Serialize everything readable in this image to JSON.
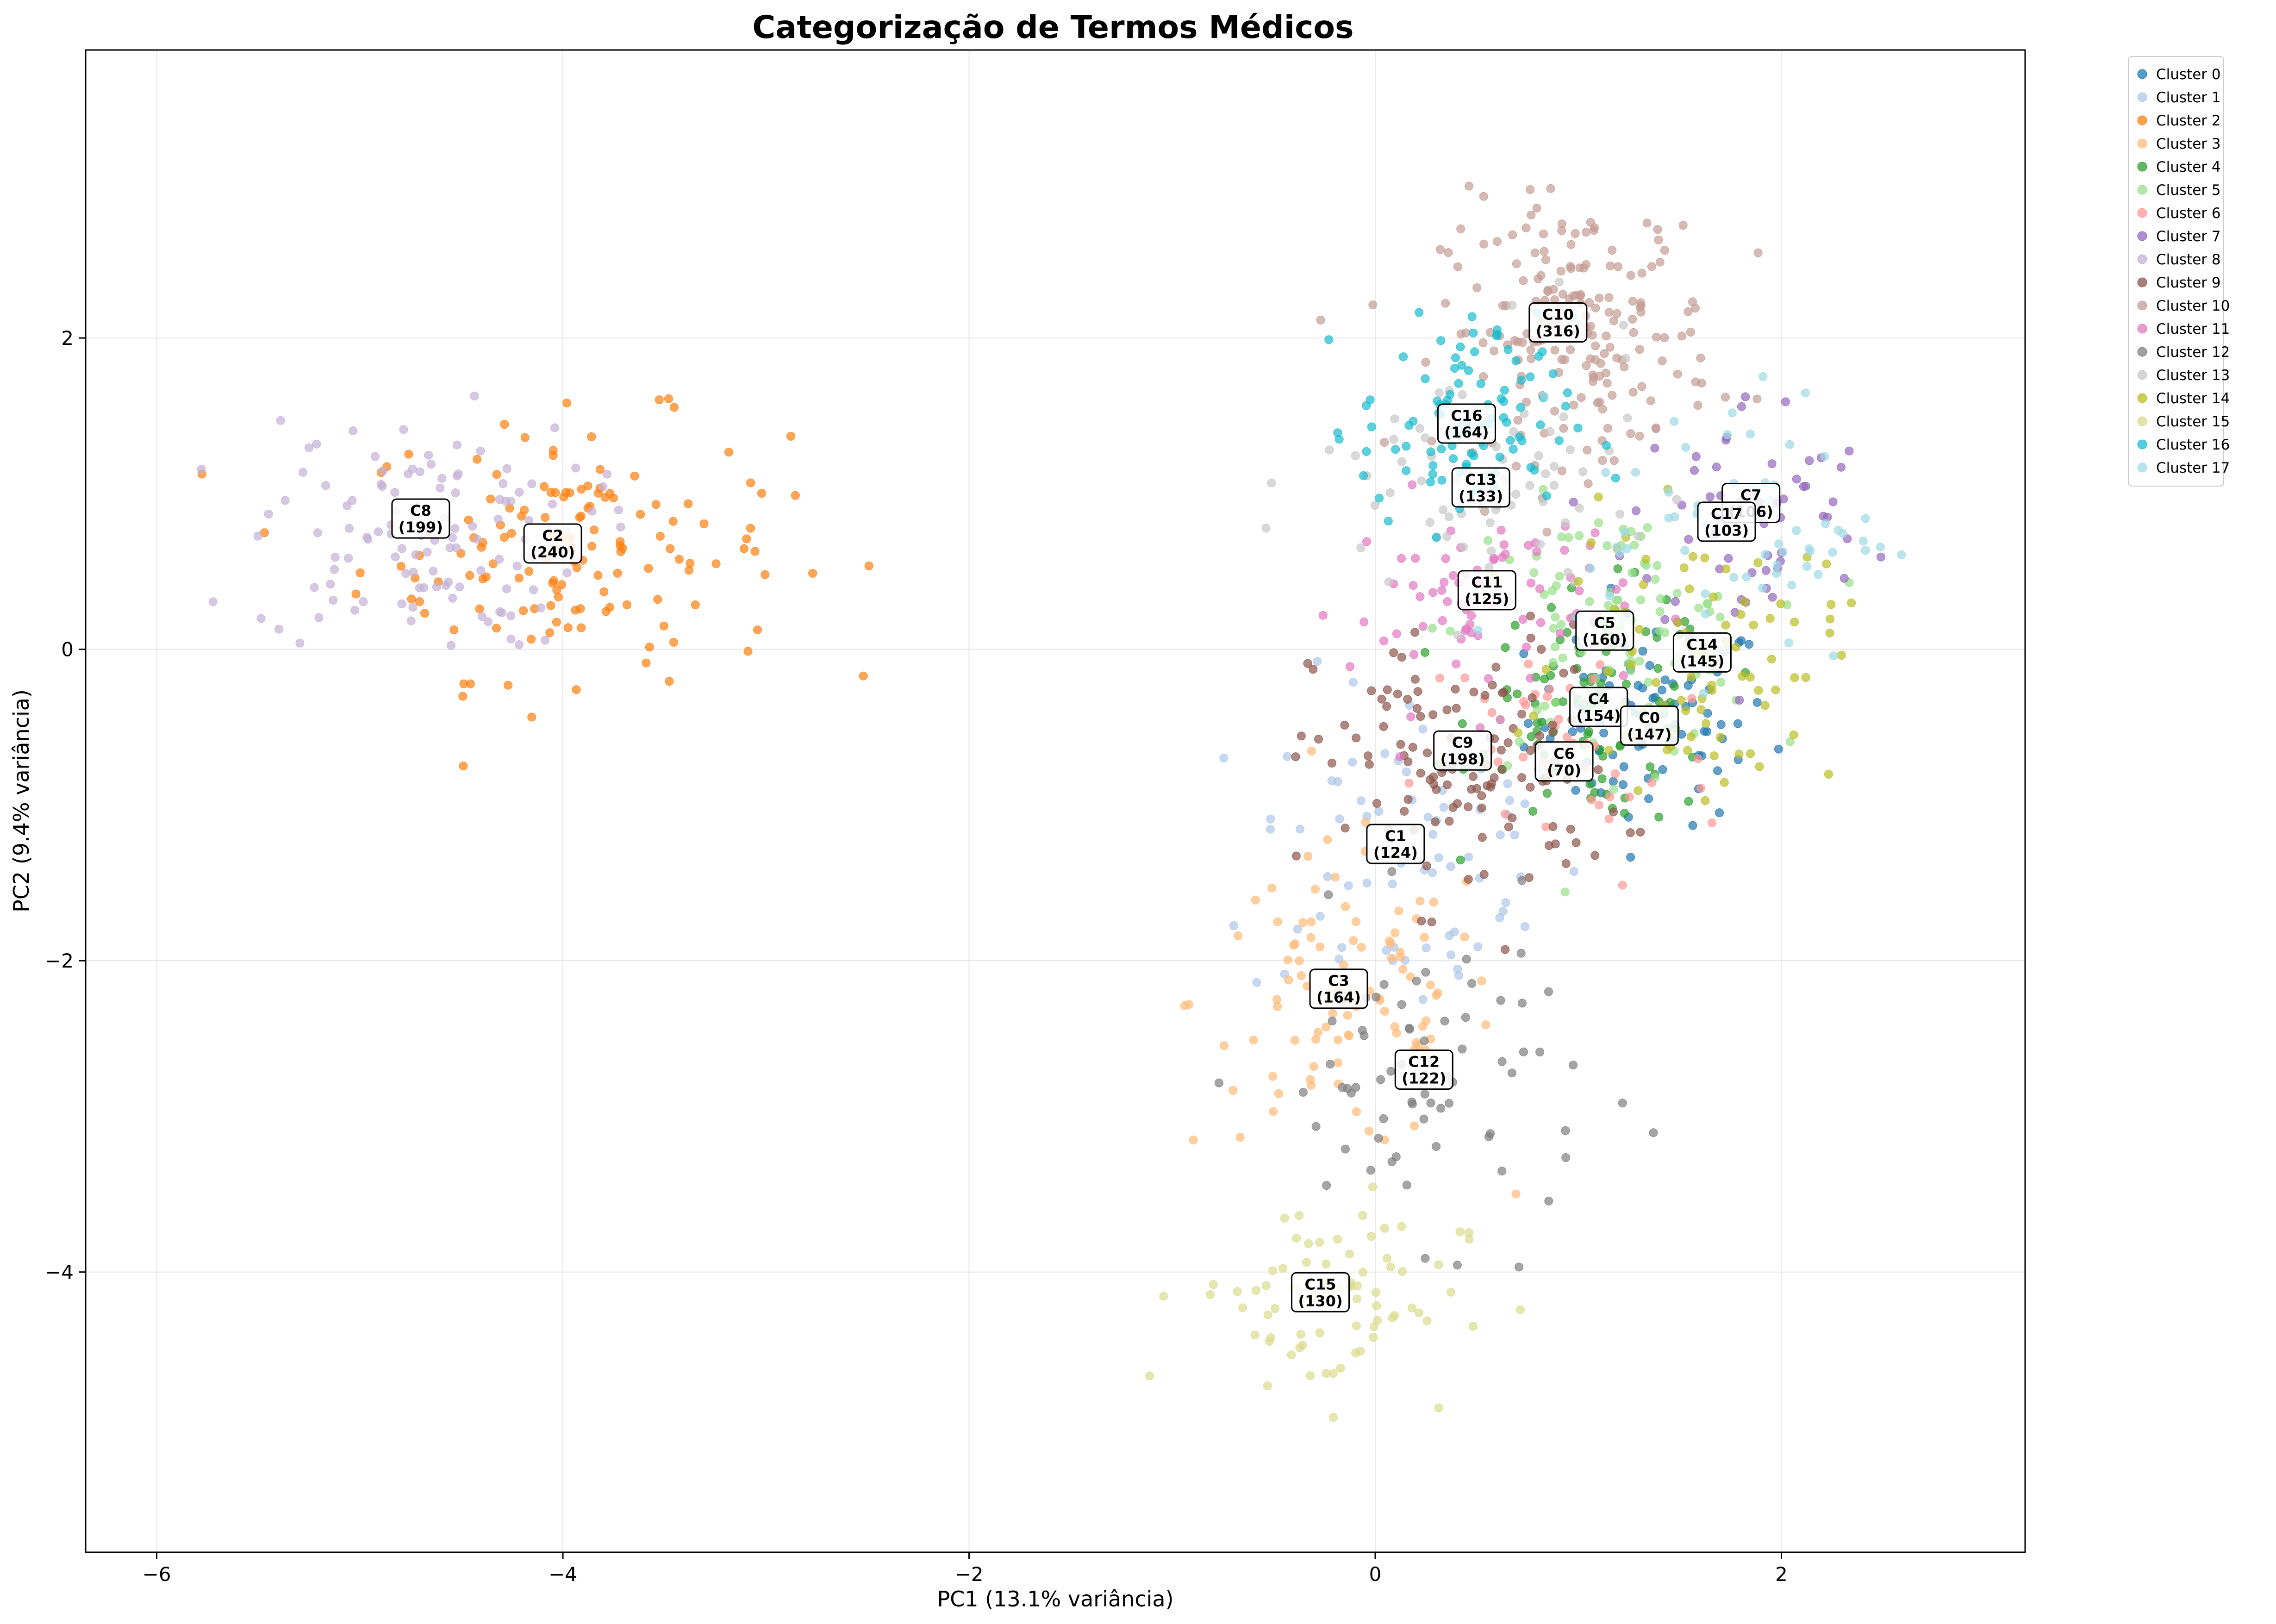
{
  "chart_data": {
    "type": "scatter",
    "title": "Categorização de Termos Médicos",
    "xlabel": "PC1 (13.1% variância)",
    "ylabel": "PC2 (9.4% variância)",
    "xlim": [
      -6.35,
      3.2
    ],
    "ylim": [
      -5.8,
      3.85
    ],
    "xticks": [
      -6,
      -4,
      -2,
      0,
      2
    ],
    "yticks": [
      -4,
      -2,
      0,
      2
    ],
    "xtick_labels": [
      "−6",
      "−4",
      "−2",
      "0",
      "2"
    ],
    "ytick_labels": [
      "−4",
      "−2",
      "0",
      "2"
    ],
    "grid": true,
    "legend_position": "outside upper right",
    "series": [
      {
        "name": "Cluster 0",
        "color": "#1f77b4",
        "center": [
          1.35,
          -0.45
        ],
        "spread": [
          0.4,
          0.45
        ],
        "count": 147
      },
      {
        "name": "Cluster 1",
        "color": "#aec7e8",
        "center": [
          0.2,
          -1.3
        ],
        "spread": [
          0.55,
          0.75
        ],
        "count": 124
      },
      {
        "name": "Cluster 2",
        "color": "#ff7f0e",
        "center": [
          -3.95,
          0.65
        ],
        "spread": [
          0.7,
          0.55
        ],
        "count": 240
      },
      {
        "name": "Cluster 3",
        "color": "#ffbb78",
        "center": [
          -0.15,
          -2.25
        ],
        "spread": [
          0.5,
          0.65
        ],
        "count": 164
      },
      {
        "name": "Cluster 4",
        "color": "#2ca02c",
        "center": [
          1.1,
          -0.4
        ],
        "spread": [
          0.4,
          0.5
        ],
        "count": 154
      },
      {
        "name": "Cluster 5",
        "color": "#98df8a",
        "center": [
          1.15,
          0.1
        ],
        "spread": [
          0.5,
          0.55
        ],
        "count": 160
      },
      {
        "name": "Cluster 6",
        "color": "#ff9896",
        "center": [
          0.95,
          -0.7
        ],
        "spread": [
          0.5,
          0.6
        ],
        "count": 70
      },
      {
        "name": "Cluster 7",
        "color": "#9467bd",
        "center": [
          1.85,
          0.85
        ],
        "spread": [
          0.4,
          0.55
        ],
        "count": 106
      },
      {
        "name": "Cluster 8",
        "color": "#c5b0d5",
        "center": [
          -4.7,
          0.75
        ],
        "spread": [
          0.55,
          0.5
        ],
        "count": 199
      },
      {
        "name": "Cluster 9",
        "color": "#8c564b",
        "center": [
          0.45,
          -0.75
        ],
        "spread": [
          0.5,
          0.6
        ],
        "count": 198
      },
      {
        "name": "Cluster 10",
        "color": "#c49c94",
        "center": [
          1.0,
          2.05
        ],
        "spread": [
          0.45,
          0.55
        ],
        "count": 316
      },
      {
        "name": "Cluster 11",
        "color": "#e377c2",
        "center": [
          0.55,
          0.3
        ],
        "spread": [
          0.45,
          0.45
        ],
        "count": 125
      },
      {
        "name": "Cluster 12",
        "color": "#7f7f7f",
        "center": [
          0.25,
          -2.75
        ],
        "spread": [
          0.55,
          0.65
        ],
        "count": 122
      },
      {
        "name": "Cluster 13",
        "color": "#c7c7c7",
        "center": [
          0.55,
          1.05
        ],
        "spread": [
          0.55,
          0.6
        ],
        "count": 133
      },
      {
        "name": "Cluster 14",
        "color": "#bcbd22",
        "center": [
          1.6,
          -0.05
        ],
        "spread": [
          0.45,
          0.55
        ],
        "count": 145
      },
      {
        "name": "Cluster 15",
        "color": "#dbdb8d",
        "center": [
          -0.25,
          -4.15
        ],
        "spread": [
          0.45,
          0.45
        ],
        "count": 130
      },
      {
        "name": "Cluster 16",
        "color": "#17becf",
        "center": [
          0.45,
          1.45
        ],
        "spread": [
          0.35,
          0.45
        ],
        "count": 164
      },
      {
        "name": "Cluster 17",
        "color": "#9edae5",
        "center": [
          1.75,
          0.8
        ],
        "spread": [
          0.5,
          0.6
        ],
        "count": 103
      }
    ],
    "annotations": [
      {
        "id": "C10",
        "count": "(316)",
        "x": 0.9,
        "y": 2.1
      },
      {
        "id": "C16",
        "count": "(164)",
        "x": 0.45,
        "y": 1.45
      },
      {
        "id": "C13",
        "count": "(133)",
        "x": 0.52,
        "y": 1.04
      },
      {
        "id": "C7",
        "count": "(106)",
        "x": 1.85,
        "y": 0.94
      },
      {
        "id": "C17",
        "count": "(103)",
        "x": 1.73,
        "y": 0.82
      },
      {
        "id": "C8",
        "count": "(199)",
        "x": -4.7,
        "y": 0.84
      },
      {
        "id": "C2",
        "count": "(240)",
        "x": -4.05,
        "y": 0.68
      },
      {
        "id": "C11",
        "count": "(125)",
        "x": 0.55,
        "y": 0.38
      },
      {
        "id": "C5",
        "count": "(160)",
        "x": 1.13,
        "y": 0.12
      },
      {
        "id": "C14",
        "count": "(145)",
        "x": 1.61,
        "y": -0.02
      },
      {
        "id": "C4",
        "count": "(154)",
        "x": 1.1,
        "y": -0.37
      },
      {
        "id": "C0",
        "count": "(147)",
        "x": 1.35,
        "y": -0.49
      },
      {
        "id": "C9",
        "count": "(198)",
        "x": 0.43,
        "y": -0.65
      },
      {
        "id": "C6",
        "count": "(70)",
        "x": 0.93,
        "y": -0.72
      },
      {
        "id": "C1",
        "count": "(124)",
        "x": 0.1,
        "y": -1.25
      },
      {
        "id": "C3",
        "count": "(164)",
        "x": -0.18,
        "y": -2.18
      },
      {
        "id": "C12",
        "count": "(122)",
        "x": 0.24,
        "y": -2.7
      },
      {
        "id": "C15",
        "count": "(130)",
        "x": -0.27,
        "y": -4.13
      }
    ]
  }
}
